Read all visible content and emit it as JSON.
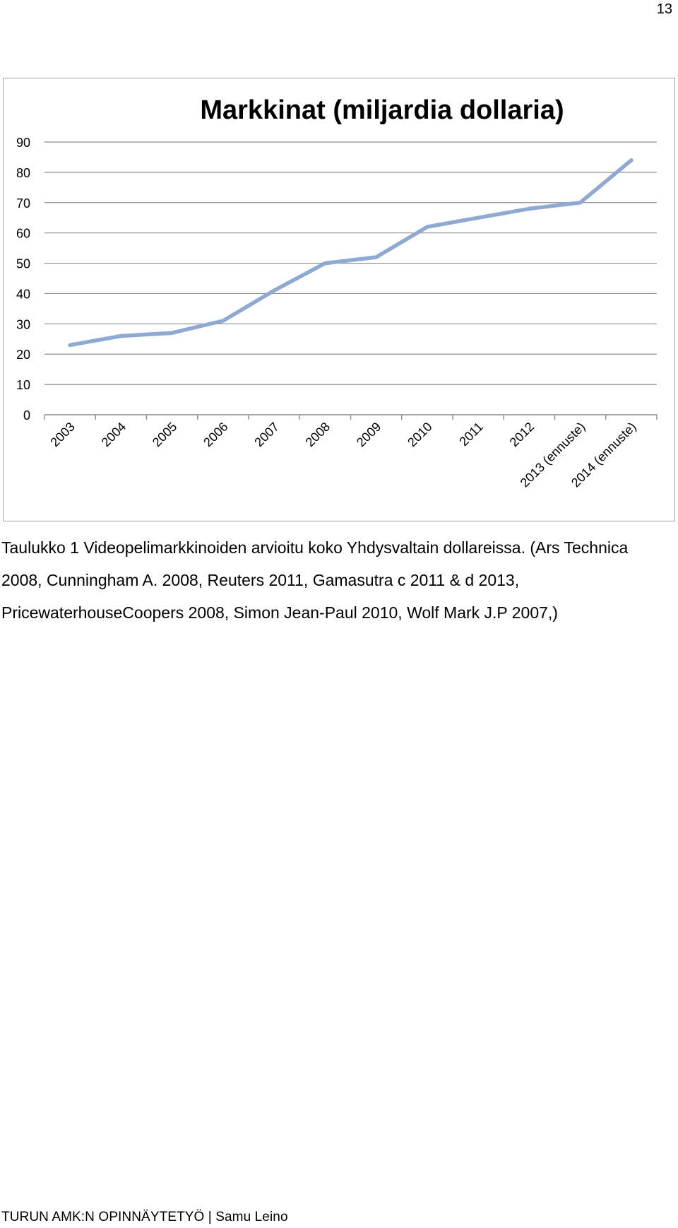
{
  "page_number": "13",
  "caption": "Taulukko 1 Videopelimarkkinoiden arvioitu koko Yhdysvaltain dollareissa. (Ars Technica 2008, Cunningham A. 2008, Reuters 2011, Gamasutra c 2011 & d 2013, PricewaterhouseCoopers 2008, Simon Jean-Paul 2010, Wolf Mark J.P 2007,)",
  "footer": "TURUN AMK:N OPINNÄYTETYÖ | Samu Leino",
  "chart_data": {
    "type": "line",
    "title": "Markkinat (miljardia dollaria)",
    "xlabel": "",
    "ylabel": "",
    "categories": [
      "2003",
      "2004",
      "2005",
      "2006",
      "2007",
      "2008",
      "2009",
      "2010",
      "2011",
      "2012",
      "2013 (ennuste)",
      "2014 (ennuste)"
    ],
    "yticks": [
      "0",
      "10",
      "20",
      "30",
      "40",
      "50",
      "60",
      "70",
      "80",
      "90"
    ],
    "series": [
      {
        "values": [
          23,
          26,
          27,
          31,
          41,
          50,
          52,
          62,
          65,
          68,
          70,
          84
        ]
      }
    ],
    "ylim": [
      0,
      90
    ],
    "grid": true,
    "legend": "none",
    "line_color": "#8eaad3",
    "grid_color": "#8c8c8c"
  }
}
